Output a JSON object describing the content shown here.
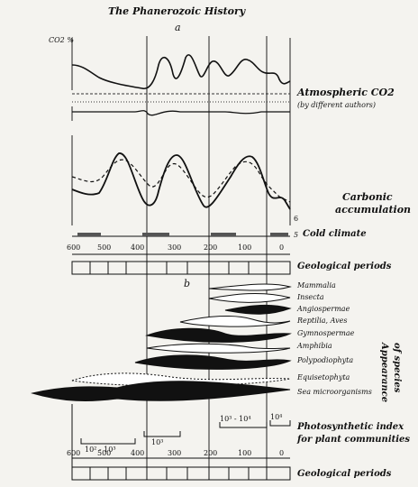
{
  "title": "The Phanerozoic History",
  "panel_a_label": "a",
  "panel_b_label": "b",
  "co2": {
    "axis_label": "CO2 %",
    "label": "Atmospheric CO2",
    "sublabel": "(by different authors)"
  },
  "carbonic": {
    "label_1": "Carbonic",
    "label_2": "accumulation",
    "mark_6": "6"
  },
  "cold_climate": {
    "label": "Cold climate",
    "mark": "5"
  },
  "geo_periods_top": {
    "label": "Geological periods"
  },
  "time_axis_top": {
    "ticks": [
      "600",
      "500",
      "400",
      "300",
      "200",
      "100",
      "0"
    ]
  },
  "groups": [
    {
      "label": "Mammalia"
    },
    {
      "label": "Insecta"
    },
    {
      "label": "Angiospermae"
    },
    {
      "label": "Reptilia, Aves"
    },
    {
      "label": "Gymnospermae"
    },
    {
      "label": "Amphibia"
    },
    {
      "label": "Polypodiophyta"
    },
    {
      "label": "Equisetophyta"
    },
    {
      "label": "Sea microorganisms"
    }
  ],
  "appearance": {
    "line1": "Appearance",
    "line2": "of species"
  },
  "photosynthetic": {
    "label_1": "Photosynthetic index",
    "label_2": "for plant communities",
    "bracket_labels": [
      "10² - 10³",
      "10³",
      "10³ - 10⁴",
      "10⁴"
    ]
  },
  "time_axis_bottom": {
    "ticks": [
      "600",
      "500",
      "400",
      "300",
      "200",
      "100",
      "0"
    ]
  },
  "geo_periods_bottom": {
    "label": "Geological periods"
  }
}
